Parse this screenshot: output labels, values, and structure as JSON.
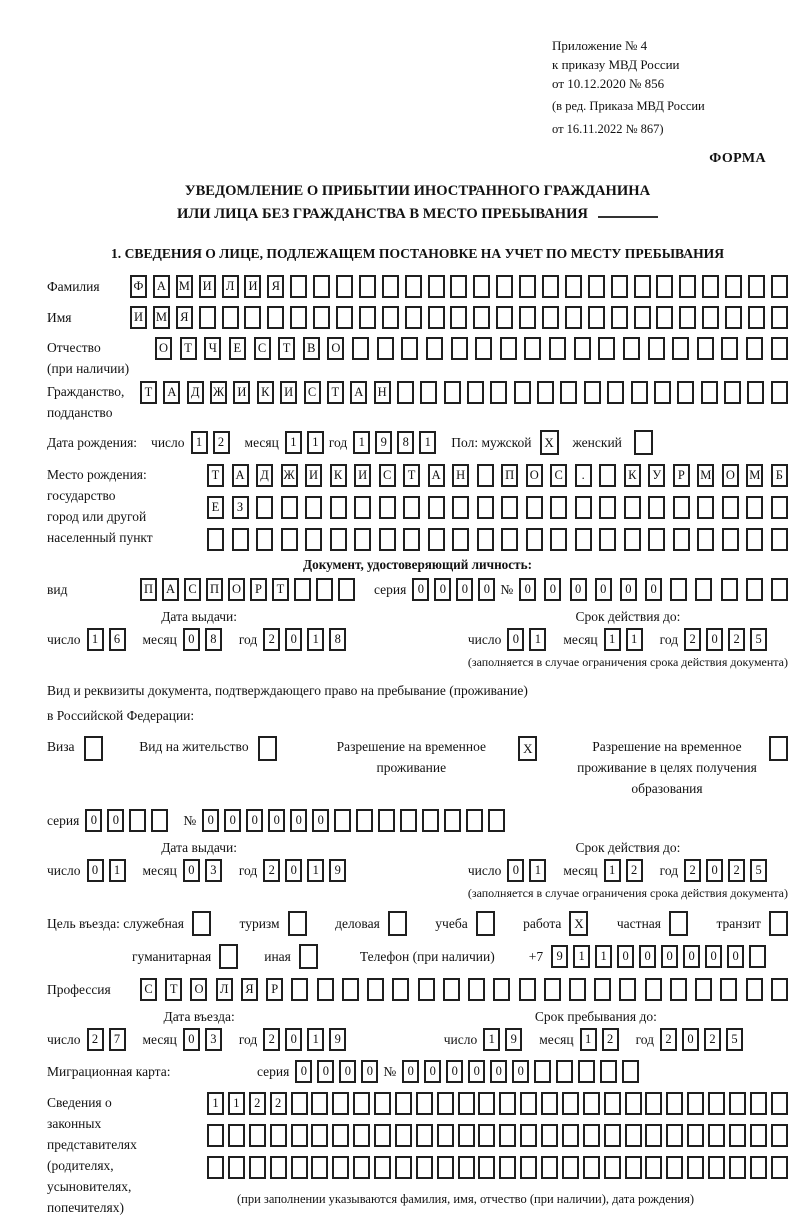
{
  "header": {
    "line1": "Приложение № 4",
    "line2": "к приказу МВД России",
    "line3": "от 10.12.2020 № 856",
    "line4": "(в ред. Приказа МВД России",
    "line5": "от 16.11.2022 № 867)",
    "forma": "ФОРМА"
  },
  "title": {
    "line1": "УВЕДОМЛЕНИЕ О ПРИБЫТИИ ИНОСТРАННОГО ГРАЖДАНИНА",
    "line2": "ИЛИ ЛИЦА БЕЗ ГРАЖДАНСТВА В МЕСТО ПРЕБЫВАНИЯ"
  },
  "section1": {
    "heading": "1. СВЕДЕНИЯ О ЛИЦЕ, ПОДЛЕЖАЩЕМ ПОСТАНОВКЕ НА УЧЕТ ПО МЕСТУ ПРЕБЫВАНИЯ"
  },
  "labels": {
    "day": "число",
    "month": "месяц",
    "year": "год",
    "seriya": "серия",
    "num": "№",
    "vid": "вид"
  },
  "fields": {
    "surname": {
      "label": "Фамилия",
      "chars": "ФАМИЛИЯ",
      "len": 29
    },
    "name": {
      "label": "Имя",
      "chars": "ИМЯ",
      "len": 29
    },
    "patronymic": {
      "label1": "Отчество",
      "label2": "(при наличии)",
      "chars": "ОТЧЕСТВО",
      "len": 26
    },
    "citizenship": {
      "label1": "Гражданство,",
      "label2": "подданство",
      "chars": "ТАДЖИКИСТАН",
      "len": 28
    },
    "birth_date": {
      "label": "Дата рождения:",
      "day": {
        "chars": "12",
        "len": 2
      },
      "month": {
        "chars": "11",
        "len": 2
      },
      "year": {
        "chars": "1981",
        "len": 4
      }
    },
    "sex": {
      "label": "Пол: мужской",
      "male_mark": "X",
      "female_label": "женский",
      "female_mark": ""
    },
    "birth_place": {
      "label1": "Место рождения:",
      "label2": "государство",
      "label3": "город или другой",
      "label4": "населенный пункт",
      "row1": {
        "chars": "ТАДЖИКИСТАН ПОС. КУРМОМБ",
        "len": 24
      },
      "row2": {
        "chars": "ЕЗ",
        "len": 24
      },
      "row3": {
        "chars": "",
        "len": 24
      }
    },
    "identity_doc": {
      "heading": "Документ, удостоверяющий личность:",
      "vid": {
        "chars": "ПАСПОРТ",
        "len": 10
      },
      "seriya": {
        "chars": "0000",
        "len": 4
      },
      "number": {
        "chars": "000000",
        "len": 11
      },
      "issue": {
        "heading": "Дата выдачи:",
        "day": {
          "chars": "16",
          "len": 2
        },
        "month": {
          "chars": "08",
          "len": 2
        },
        "year": {
          "chars": "2018",
          "len": 4
        }
      },
      "valid": {
        "heading": "Срок действия до:",
        "day": {
          "chars": "01",
          "len": 2
        },
        "month": {
          "chars": "11",
          "len": 2
        },
        "year": {
          "chars": "2025",
          "len": 4
        }
      },
      "note": "(заполняется в случае ограничения срока действия документа)"
    },
    "stay_doc": {
      "line1": "Вид и реквизиты документа, подтверждающего право на пребывание (проживание)",
      "line2": "в Российской Федерации:",
      "options": [
        {
          "label": "Виза",
          "mark": ""
        },
        {
          "label": "Вид на жительство",
          "mark": ""
        },
        {
          "label": "Разрешение на временное проживание",
          "mark": "X"
        },
        {
          "label": "Разрешение на временное проживание в целях получения образования",
          "mark": ""
        }
      ],
      "seriya": {
        "chars": "00",
        "len": 4
      },
      "number": {
        "chars": "000000",
        "len": 14
      },
      "issue": {
        "heading": "Дата выдачи:",
        "day": {
          "chars": "01",
          "len": 2
        },
        "month": {
          "chars": "03",
          "len": 2
        },
        "year": {
          "chars": "2019",
          "len": 4
        }
      },
      "valid": {
        "heading": "Срок действия до:",
        "day": {
          "chars": "01",
          "len": 2
        },
        "month": {
          "chars": "12",
          "len": 2
        },
        "year": {
          "chars": "2025",
          "len": 4
        }
      },
      "note": "(заполняется в случае ограничения срока действия документа)"
    },
    "purpose": {
      "label": "Цель въезда: служебная",
      "options": [
        {
          "label": "туризм",
          "mark": ""
        },
        {
          "label": "деловая",
          "mark": ""
        },
        {
          "label": "учеба",
          "mark": ""
        },
        {
          "label": "работа",
          "mark": "X"
        },
        {
          "label": "частная",
          "mark": ""
        },
        {
          "label": "транзит",
          "mark": ""
        },
        {
          "label": "гуманитарная",
          "mark": ""
        },
        {
          "label": "иная",
          "mark": ""
        }
      ],
      "sluzhebnaya_mark": "",
      "phone_label": "Телефон (при наличии)",
      "phone_prefix": "+7",
      "phone": {
        "chars": "911000000",
        "len": 10
      }
    },
    "profession": {
      "label": "Профессия",
      "chars": "СТОЛЯР",
      "len": 26
    },
    "entry": {
      "issue": {
        "heading": "Дата въезда:",
        "day": {
          "chars": "27",
          "len": 2
        },
        "month": {
          "chars": "03",
          "len": 2
        },
        "year": {
          "chars": "2019",
          "len": 4
        }
      },
      "valid": {
        "heading": "Срок пребывания до:",
        "day": {
          "chars": "19",
          "len": 2
        },
        "month": {
          "chars": "12",
          "len": 2
        },
        "year": {
          "chars": "2025",
          "len": 4
        }
      }
    },
    "migration_card": {
      "label": "Миграционная карта:",
      "seriya": {
        "chars": "0000",
        "len": 4
      },
      "number": {
        "chars": "000000",
        "len": 11
      }
    },
    "representatives": {
      "label1": "Сведения о",
      "label2": "законных",
      "label3": "представителях",
      "label4": "(родителях,",
      "label5": "усыновителях,",
      "label6": "попечителях)",
      "row1": {
        "chars": "1122",
        "len": 28
      },
      "row2": {
        "chars": "",
        "len": 28
      },
      "row3": {
        "chars": "",
        "len": 28
      },
      "note": "(при заполнении указываются фамилия, имя, отчество (при наличии), дата рождения)"
    }
  }
}
